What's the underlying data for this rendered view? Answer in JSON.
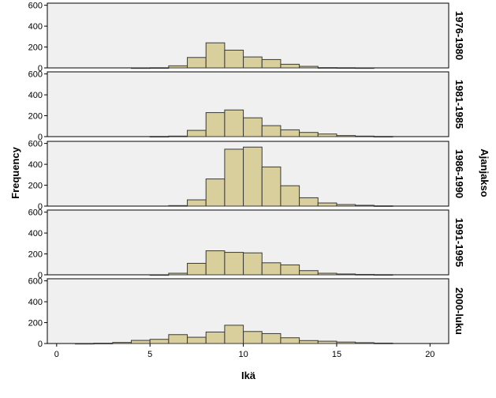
{
  "chart_data": {
    "type": "bar",
    "subtype": "histogram-small-multiples",
    "xlabel": "Ikä",
    "ylabel": "Frequency",
    "facet_label": "Ajanjakso",
    "bin_width": 1,
    "bin_starts": [
      1,
      2,
      3,
      4,
      5,
      6,
      7,
      8,
      9,
      10,
      11,
      12,
      13,
      14,
      15,
      16,
      17
    ],
    "xlim": [
      -0.5,
      21
    ],
    "x_ticks": [
      0,
      5,
      10,
      15,
      20
    ],
    "ylim": [
      0,
      620
    ],
    "y_ticks": [
      0,
      200,
      400,
      600
    ],
    "colors": {
      "bar_fill": "#d8cf9c",
      "bar_stroke": "#3a3a3a",
      "panel_bg": "#f0f0f0"
    },
    "panels": [
      {
        "name": "1976-1980",
        "values": [
          0,
          0,
          0,
          1,
          2,
          20,
          100,
          240,
          170,
          105,
          80,
          35,
          15,
          3,
          2,
          1,
          0
        ]
      },
      {
        "name": "1981-1985",
        "values": [
          0,
          0,
          0,
          0,
          2,
          5,
          60,
          230,
          255,
          180,
          105,
          65,
          40,
          25,
          10,
          5,
          2
        ]
      },
      {
        "name": "1986-1990",
        "values": [
          0,
          0,
          0,
          0,
          0,
          5,
          60,
          260,
          545,
          565,
          375,
          195,
          80,
          30,
          15,
          8,
          3
        ]
      },
      {
        "name": "1991-1995",
        "values": [
          0,
          0,
          0,
          0,
          1,
          15,
          110,
          230,
          215,
          210,
          115,
          95,
          40,
          15,
          8,
          4,
          2
        ]
      },
      {
        "name": "2000-luku",
        "values": [
          1,
          3,
          10,
          30,
          40,
          85,
          60,
          110,
          175,
          115,
          95,
          55,
          28,
          22,
          14,
          8,
          4
        ]
      }
    ]
  }
}
